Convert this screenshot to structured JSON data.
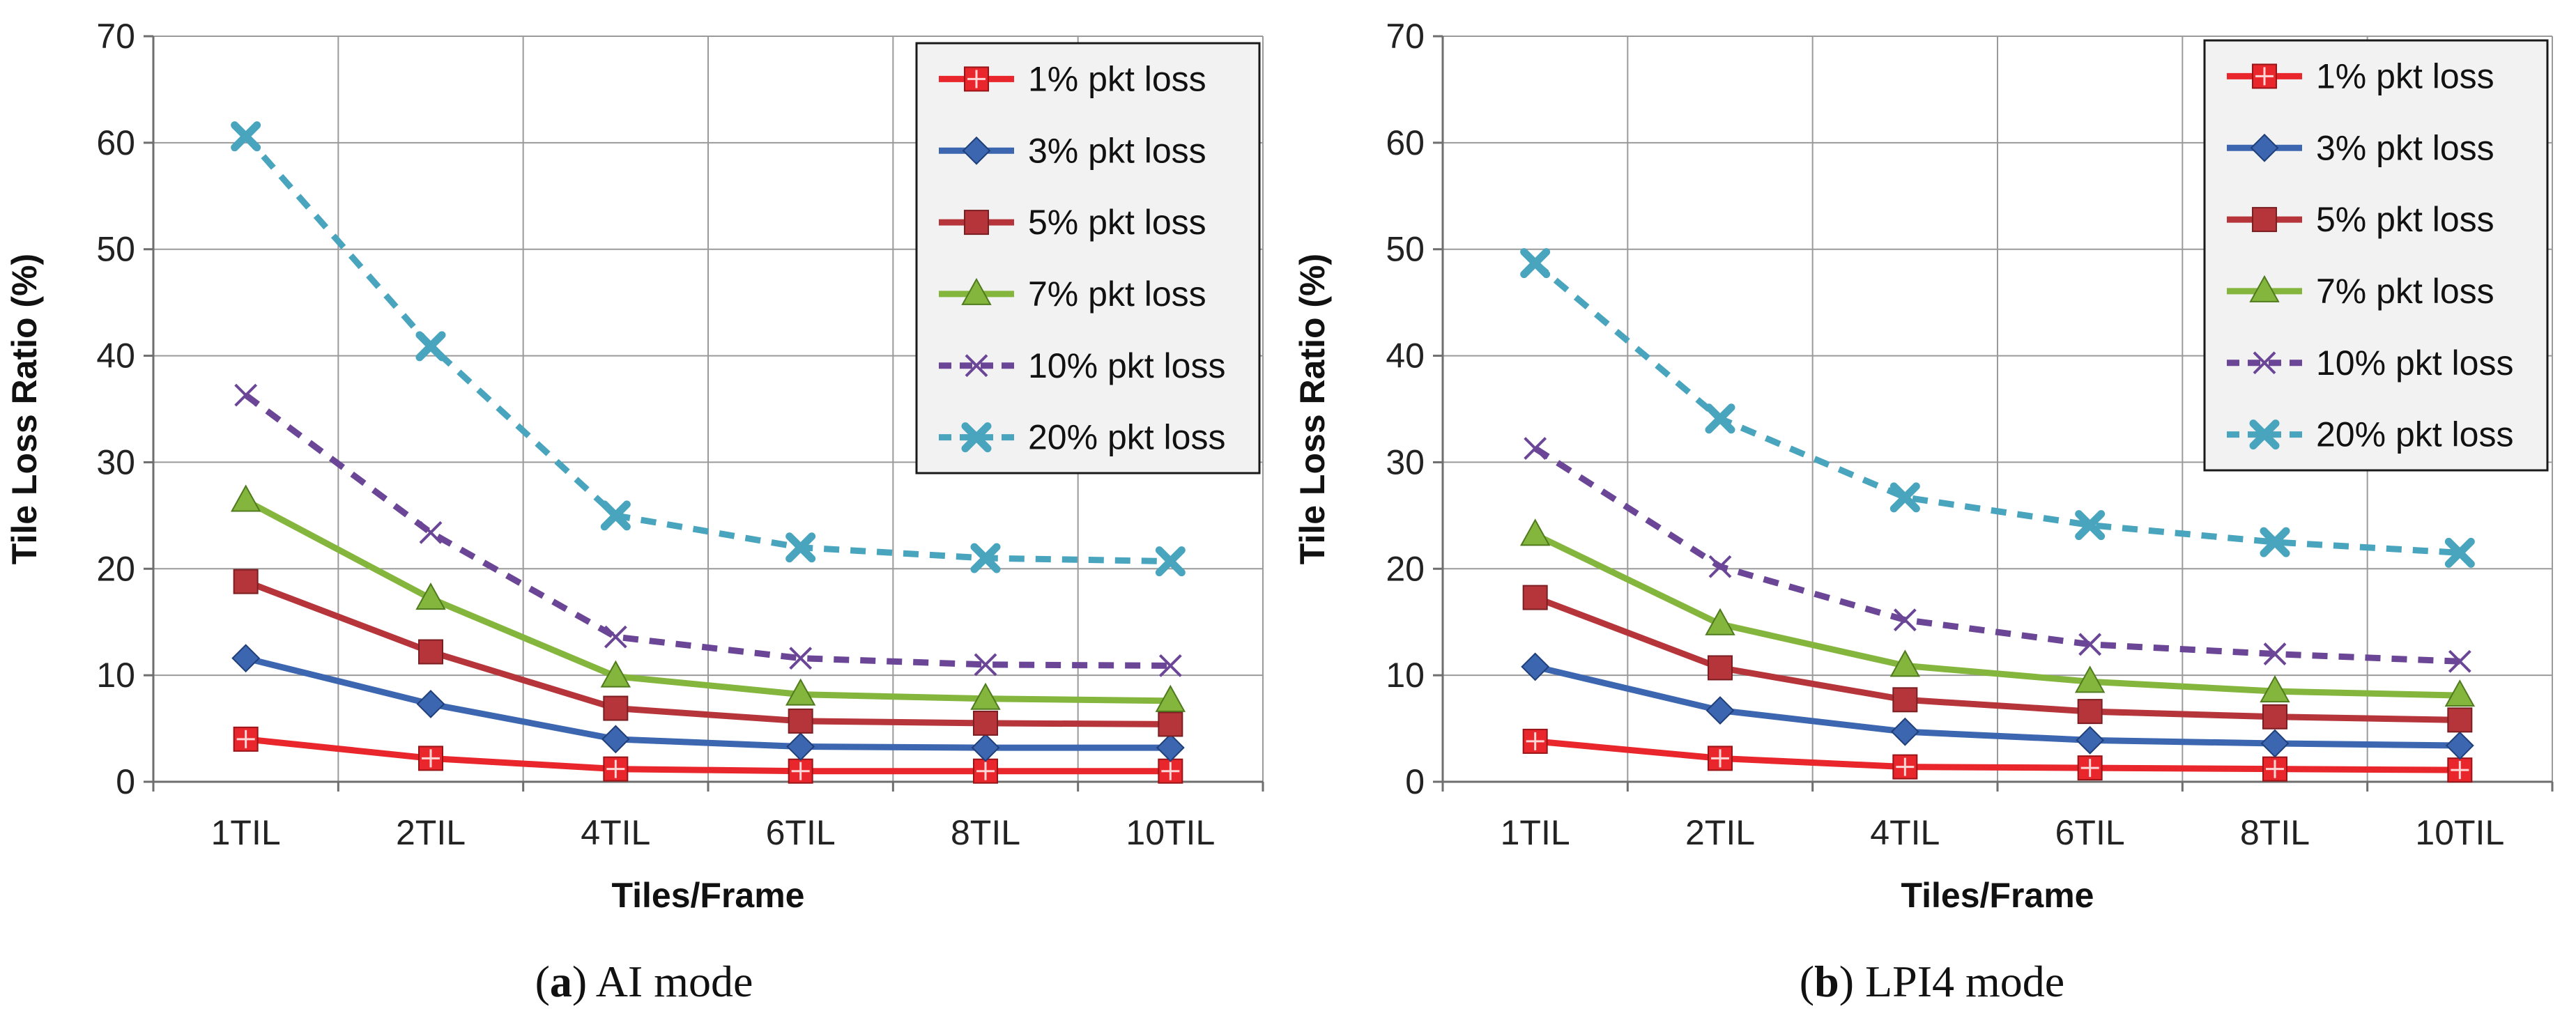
{
  "chart_data": [
    {
      "type": "line",
      "panel_letter": "a",
      "caption": "AI mode",
      "xlabel": "Tiles/Frame",
      "ylabel": "Tile Loss Ratio (%)",
      "ylim": [
        0,
        70
      ],
      "yticks": [
        0,
        10,
        20,
        30,
        40,
        50,
        60,
        70
      ],
      "grid": true,
      "legend_position": "top-right",
      "categories": [
        "1TIL",
        "2TIL",
        "4TIL",
        "6TIL",
        "8TIL",
        "10TIL"
      ],
      "series": [
        {
          "name": "1% pkt loss",
          "color": "#e8262b",
          "dash": false,
          "marker": "square-plus",
          "values": [
            4.0,
            2.2,
            1.2,
            1.0,
            1.0,
            1.0
          ]
        },
        {
          "name": "3% pkt loss",
          "color": "#3c66b0",
          "dash": false,
          "marker": "diamond",
          "values": [
            11.6,
            7.3,
            4.0,
            3.3,
            3.2,
            3.2
          ]
        },
        {
          "name": "5% pkt loss",
          "color": "#b6353a",
          "dash": false,
          "marker": "square",
          "values": [
            18.8,
            12.2,
            6.9,
            5.7,
            5.5,
            5.4
          ]
        },
        {
          "name": "7% pkt loss",
          "color": "#84b53c",
          "dash": false,
          "marker": "triangle",
          "values": [
            26.4,
            17.2,
            9.9,
            8.2,
            7.8,
            7.6
          ]
        },
        {
          "name": "10% pkt loss",
          "color": "#6b4697",
          "dash": true,
          "marker": "x",
          "values": [
            36.3,
            23.4,
            13.6,
            11.6,
            11.0,
            10.9
          ]
        },
        {
          "name": "20% pkt loss",
          "color": "#49a4be",
          "dash": true,
          "marker": "star",
          "values": [
            60.6,
            40.9,
            25.0,
            22.0,
            21.0,
            20.7
          ]
        }
      ]
    },
    {
      "type": "line",
      "panel_letter": "b",
      "caption": "LPI4 mode",
      "xlabel": "Tiles/Frame",
      "ylabel": "Tile Loss Ratio (%)",
      "ylim": [
        0,
        70
      ],
      "yticks": [
        0,
        10,
        20,
        30,
        40,
        50,
        60,
        70
      ],
      "grid": true,
      "legend_position": "top-right",
      "categories": [
        "1TIL",
        "2TIL",
        "4TIL",
        "6TIL",
        "8TIL",
        "10TIL"
      ],
      "series": [
        {
          "name": "1% pkt loss",
          "color": "#e8262b",
          "dash": false,
          "marker": "square-plus",
          "values": [
            3.8,
            2.2,
            1.4,
            1.3,
            1.2,
            1.1
          ]
        },
        {
          "name": "3% pkt loss",
          "color": "#3c66b0",
          "dash": false,
          "marker": "diamond",
          "values": [
            10.8,
            6.7,
            4.7,
            3.9,
            3.6,
            3.4
          ]
        },
        {
          "name": "5% pkt loss",
          "color": "#b6353a",
          "dash": false,
          "marker": "square",
          "values": [
            17.3,
            10.7,
            7.7,
            6.6,
            6.1,
            5.8
          ]
        },
        {
          "name": "7% pkt loss",
          "color": "#84b53c",
          "dash": false,
          "marker": "triangle",
          "values": [
            23.2,
            14.8,
            10.9,
            9.4,
            8.5,
            8.1
          ]
        },
        {
          "name": "10% pkt loss",
          "color": "#6b4697",
          "dash": true,
          "marker": "x",
          "values": [
            31.3,
            20.2,
            15.2,
            12.9,
            12.0,
            11.3
          ]
        },
        {
          "name": "20% pkt loss",
          "color": "#49a4be",
          "dash": true,
          "marker": "star",
          "values": [
            48.7,
            34.1,
            26.7,
            24.1,
            22.5,
            21.5
          ]
        }
      ]
    }
  ]
}
